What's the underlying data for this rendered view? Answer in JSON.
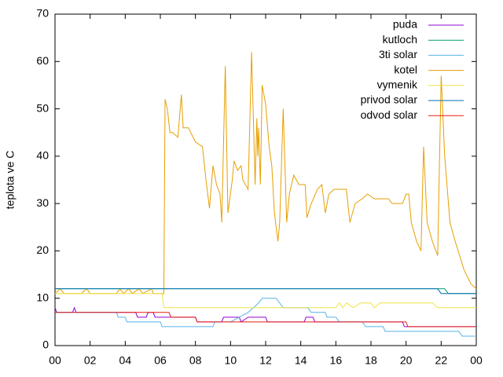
{
  "chart_data": {
    "type": "line",
    "ylabel": "teplota ve C",
    "xlim": [
      0,
      24
    ],
    "xticks": [
      {
        "value": 0,
        "label": "00"
      },
      {
        "value": 2,
        "label": "02"
      },
      {
        "value": 4,
        "label": "04"
      },
      {
        "value": 6,
        "label": "06"
      },
      {
        "value": 8,
        "label": "08"
      },
      10,
      12,
      14,
      16,
      18,
      20,
      22,
      {
        "value": 24,
        "label": "00"
      }
    ],
    "ylim": [
      0,
      70
    ],
    "yticks": [
      0,
      10,
      20,
      30,
      40,
      50,
      60,
      70
    ],
    "legend": "top-right",
    "series": [
      {
        "name": "puda",
        "color": "#9400d3",
        "x": [
          0,
          0.1,
          1,
          1.1,
          1.2,
          4.6,
          4.7,
          5.2,
          5.3,
          5.6,
          5.7,
          8,
          8.1,
          9.5,
          9.6,
          10.5,
          10.6,
          11,
          12,
          12.1,
          14.2,
          14.3,
          14.7,
          14.8,
          19.8,
          19.9,
          24
        ],
        "values": [
          8,
          7,
          7,
          8,
          7,
          7,
          6,
          6,
          7,
          7,
          6,
          6,
          5,
          5,
          6,
          6,
          5,
          6,
          6,
          5,
          5,
          6,
          6,
          5,
          5,
          4,
          4
        ]
      },
      {
        "name": "kutloch",
        "color": "#009e73",
        "x": [
          0,
          22.2,
          22.4,
          24
        ],
        "values": [
          12,
          12,
          11,
          11
        ]
      },
      {
        "name": "3ti solar",
        "color": "#56b4e9",
        "x": [
          0,
          3.5,
          3.6,
          4,
          4.1,
          6,
          6.1,
          9,
          9.1,
          10,
          10.5,
          11,
          11.3,
          11.6,
          11.8,
          12.6,
          12.8,
          13,
          14.4,
          14.6,
          15.4,
          15.5,
          16,
          16.2,
          17.5,
          17.7,
          18.7,
          18.8,
          23,
          23.2,
          24
        ],
        "values": [
          7,
          7,
          6,
          6,
          5,
          5,
          4,
          4,
          5,
          5,
          6,
          7,
          8,
          9,
          10,
          10,
          9,
          8,
          8,
          7,
          7,
          6,
          6,
          5,
          5,
          4,
          4,
          3,
          3,
          2,
          2
        ]
      },
      {
        "name": "kotel",
        "color": "#e69f00",
        "x": [
          0,
          0.3,
          0.5,
          1.5,
          1.8,
          2,
          3.5,
          3.7,
          3.9,
          4.2,
          4.4,
          4.8,
          5,
          5.5,
          5.6,
          6.2,
          6.27,
          6.4,
          6.55,
          6.7,
          7.0,
          7.2,
          7.3,
          7.6,
          8.0,
          8.4,
          8.6,
          8.8,
          9.0,
          9.2,
          9.4,
          9.5,
          9.7,
          9.85,
          10.1,
          10.2,
          10.4,
          10.6,
          10.7,
          11.0,
          11.2,
          11.4,
          11.5,
          11.55,
          11.6,
          11.7,
          11.8,
          12.0,
          12.2,
          12.35,
          12.5,
          12.7,
          12.8,
          13.0,
          13.2,
          13.35,
          13.6,
          13.9,
          14.25,
          14.35,
          14.6,
          14.95,
          15.2,
          15.4,
          15.6,
          15.9,
          16.6,
          16.8,
          17.1,
          17.5,
          17.8,
          18.2,
          19.0,
          19.2,
          19.8,
          20.0,
          20.15,
          20.3,
          20.6,
          20.85,
          21.0,
          21.2,
          21.5,
          21.8,
          22.0,
          22.2,
          22.5,
          22.8,
          23.3,
          23.7,
          24
        ],
        "values": [
          11,
          12,
          11,
          11,
          12,
          11,
          11,
          12,
          11,
          12,
          11,
          12,
          11,
          12,
          11,
          11,
          52,
          50,
          45,
          45,
          44,
          53,
          46,
          46,
          43,
          42,
          35,
          29,
          38,
          34,
          32,
          26,
          59,
          28,
          35,
          39,
          37,
          38,
          35,
          33,
          62,
          34,
          48,
          40,
          46,
          34,
          55,
          51,
          42,
          38,
          28,
          22,
          26,
          50,
          26,
          32,
          36,
          34,
          34,
          27,
          30,
          33,
          34,
          28,
          32,
          33,
          33,
          26,
          30,
          31,
          32,
          31,
          31,
          30,
          30,
          32,
          32,
          26,
          22,
          20,
          42,
          26,
          22,
          19,
          57,
          40,
          26,
          22,
          16,
          13,
          12
        ]
      },
      {
        "name": "vymenik",
        "color": "#f0e442",
        "x": [
          0,
          6.1,
          6.2,
          16,
          16.2,
          16.4,
          16.6,
          17,
          17.4,
          18,
          18.2,
          18.5,
          21.5,
          21.8,
          24
        ],
        "values": [
          11,
          11,
          8,
          8,
          9,
          8,
          9,
          8,
          9,
          9,
          8,
          9,
          9,
          8,
          8
        ]
      },
      {
        "name": "privod solar",
        "color": "#0072b2",
        "x": [
          0,
          21.8,
          22,
          24
        ],
        "values": [
          12,
          12,
          11,
          11
        ]
      },
      {
        "name": "odvod solar",
        "color": "#e51e10",
        "x": [
          0,
          6.5,
          6.6,
          8,
          8.1,
          20,
          20.1,
          24
        ],
        "values": [
          7,
          7,
          6,
          6,
          5,
          5,
          4,
          4
        ]
      }
    ]
  }
}
